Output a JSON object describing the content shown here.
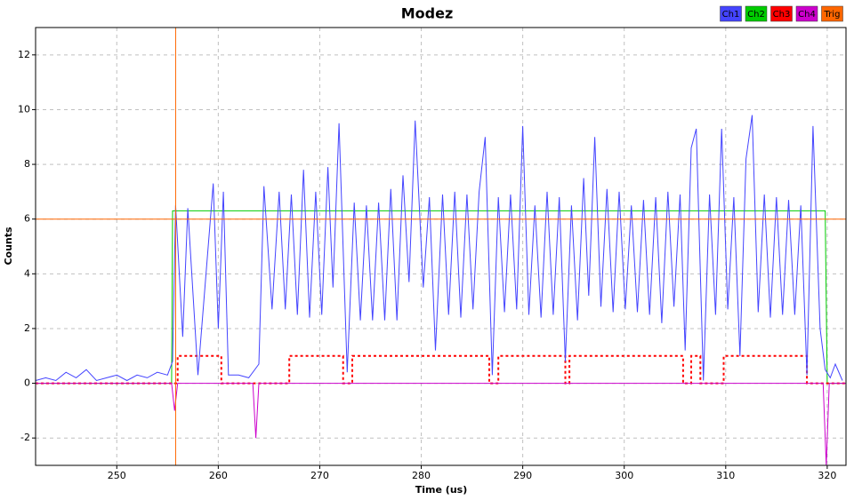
{
  "chart_data": {
    "type": "line",
    "title": "Modez",
    "xlabel": "Time (us)",
    "ylabel": "Counts",
    "xlim": [
      242,
      321.85
    ],
    "ylim": [
      -3,
      13
    ],
    "xticks": [
      250,
      260,
      270,
      280,
      290,
      300,
      310,
      320
    ],
    "yticks": [
      -2,
      0,
      2,
      4,
      6,
      8,
      10,
      12
    ],
    "grid": true,
    "legend": "top-right",
    "series": [
      {
        "name": "Ch1",
        "color": "#4444ff",
        "x": [
          242,
          243,
          244,
          245,
          246,
          247,
          248,
          249,
          250,
          251,
          252,
          253,
          254,
          255,
          255.5,
          255.8,
          256.5,
          257,
          258,
          259.5,
          260,
          260.5,
          261,
          262,
          263,
          264,
          264.5,
          265.3,
          266,
          266.6,
          267.2,
          267.8,
          268.4,
          269,
          269.6,
          270.2,
          270.8,
          271.3,
          271.9,
          272.7,
          273.4,
          274,
          274.6,
          275.2,
          275.8,
          276.4,
          277,
          277.6,
          278.2,
          278.8,
          279.4,
          280.2,
          280.8,
          281.4,
          282.1,
          282.7,
          283.3,
          283.9,
          284.5,
          285.1,
          285.7,
          286.3,
          287,
          287.6,
          288.2,
          288.8,
          289.4,
          290,
          290.6,
          291.2,
          291.8,
          292.4,
          293,
          293.6,
          294.2,
          294.8,
          295.4,
          296,
          296.5,
          297.1,
          297.7,
          298.3,
          298.9,
          299.5,
          300.1,
          300.7,
          301.3,
          301.9,
          302.5,
          303.1,
          303.7,
          304.3,
          304.9,
          305.5,
          306,
          306.6,
          307.1,
          307.8,
          308.4,
          309,
          309.6,
          310.2,
          310.8,
          311.4,
          312,
          312.6,
          313.2,
          313.8,
          314.4,
          315,
          315.6,
          316.2,
          316.8,
          317.4,
          318,
          318.6,
          319.3,
          319.8,
          320.3,
          320.8,
          321.5
        ],
        "values": [
          0.1,
          0.2,
          0.1,
          0.4,
          0.2,
          0.5,
          0.1,
          0.2,
          0.3,
          0.1,
          0.3,
          0.2,
          0.4,
          0.3,
          0.8,
          6.5,
          1.7,
          6.4,
          0.3,
          7.3,
          2,
          7,
          0.3,
          0.3,
          0.2,
          0.7,
          7.2,
          2.7,
          7,
          2.7,
          6.9,
          2.5,
          7.8,
          2.4,
          7,
          2.5,
          7.9,
          3.5,
          9.5,
          0.4,
          6.6,
          2.3,
          6.5,
          2.3,
          6.6,
          2.3,
          7.1,
          2.3,
          7.6,
          3.7,
          9.6,
          3.5,
          6.8,
          1.2,
          6.9,
          2.5,
          7,
          2.4,
          6.9,
          2.7,
          7,
          9,
          0.3,
          6.8,
          2.6,
          6.9,
          2.7,
          9.4,
          2.5,
          6.5,
          2.4,
          7,
          2.5,
          6.8,
          0.8,
          6.5,
          2.3,
          7.5,
          3.2,
          9,
          2.8,
          7.1,
          2.6,
          7,
          2.7,
          6.5,
          2.6,
          6.7,
          2.5,
          6.8,
          2.2,
          7,
          2.8,
          6.9,
          1.2,
          8.6,
          9.3,
          0.1,
          6.9,
          2.5,
          9.3,
          2.7,
          6.8,
          1,
          8.2,
          9.8,
          2.6,
          6.9,
          2.4,
          6.8,
          2.5,
          6.7,
          2.5,
          6.5,
          0.3,
          9.4,
          2,
          0.5,
          0.2,
          0.7,
          0.1
        ]
      },
      {
        "name": "Ch2",
        "color": "#00cc00",
        "x": [
          242,
          255.4,
          255.5,
          319.8,
          320,
          321.8
        ],
        "values": [
          0,
          0,
          6.3,
          6.3,
          0,
          0
        ]
      },
      {
        "name": "Ch3",
        "color": "#ff0000",
        "x": [
          242,
          256,
          256,
          260.3,
          260.3,
          267,
          267,
          272.3,
          272.3,
          273.2,
          273.2,
          286.7,
          286.7,
          287.6,
          287.6,
          294.2,
          294.2,
          294.6,
          294.6,
          305.8,
          305.8,
          306.6,
          306.6,
          307.5,
          307.5,
          309.8,
          309.8,
          318,
          318,
          321.8
        ],
        "values": [
          0,
          0,
          1,
          1,
          0,
          0,
          1,
          1,
          0,
          0,
          1,
          1,
          0,
          0,
          1,
          1,
          0,
          0,
          1,
          1,
          0,
          0,
          1,
          1,
          0,
          0,
          1,
          1,
          0,
          0
        ]
      },
      {
        "name": "Ch4",
        "color": "#cc00cc",
        "x": [
          242,
          255.4,
          255.7,
          256,
          263.4,
          263.7,
          264,
          319.6,
          319.9,
          320.2,
          321.8
        ],
        "values": [
          0,
          0,
          -1,
          0,
          0,
          -2,
          0,
          0,
          -3,
          0,
          0
        ]
      }
    ],
    "trigger": {
      "name": "Trig",
      "color": "#ff6600",
      "x": 255.8,
      "y": 6
    }
  }
}
